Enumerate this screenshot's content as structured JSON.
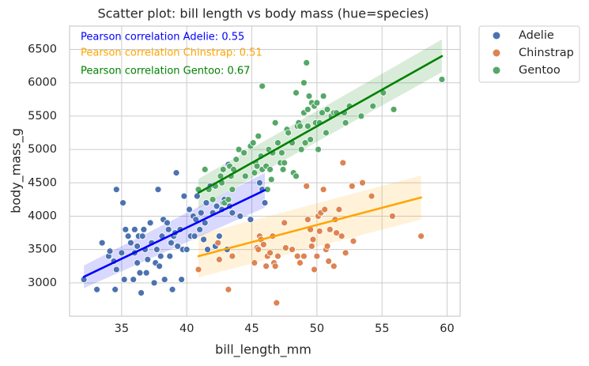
{
  "chart_data": {
    "type": "scatter",
    "title": "Scatter plot: bill length vs body mass (hue=species)",
    "xlabel": "bill_length_mm",
    "ylabel": "body_mass_g",
    "xlim": [
      31,
      61
    ],
    "ylim": [
      2500,
      6850
    ],
    "x_ticks": [
      35,
      40,
      45,
      50,
      55,
      60
    ],
    "y_ticks": [
      3000,
      3500,
      4000,
      4500,
      5000,
      5500,
      6000,
      6500
    ],
    "grid": true,
    "legend_position": "outside-top-right",
    "annotations": [
      {
        "text": "Pearson correlation Adelie: 0.55",
        "color": "#0000ff"
      },
      {
        "text": "Pearson correlation Chinstrap: 0.51",
        "color": "#ffa500"
      },
      {
        "text": "Pearson correlation Gentoo: 0.67",
        "color": "#008000"
      }
    ],
    "series": [
      {
        "name": "Adelie",
        "point_color": "#4c72b0",
        "line_color": "#0000ff",
        "band_color": "#0000ff",
        "band_opacity": 0.15,
        "fit": {
          "x": [
            32.1,
            46.0
          ],
          "y": [
            3090,
            4390
          ]
        },
        "band": {
          "lower": [
            2920,
            4130
          ],
          "upper": [
            3260,
            4650
          ]
        },
        "points": [
          [
            32.1,
            3050
          ],
          [
            33.1,
            2900
          ],
          [
            33.5,
            3600
          ],
          [
            34.0,
            3400
          ],
          [
            34.1,
            3475
          ],
          [
            34.4,
            3325
          ],
          [
            34.5,
            2900
          ],
          [
            34.6,
            4400
          ],
          [
            34.6,
            3200
          ],
          [
            35.0,
            3450
          ],
          [
            35.1,
            4200
          ],
          [
            35.2,
            3050
          ],
          [
            35.3,
            3800
          ],
          [
            35.5,
            3700
          ],
          [
            35.7,
            3600
          ],
          [
            35.9,
            3050
          ],
          [
            36.0,
            3800
          ],
          [
            36.0,
            3450
          ],
          [
            36.2,
            3550
          ],
          [
            36.2,
            3300
          ],
          [
            36.3,
            3700
          ],
          [
            36.4,
            3150
          ],
          [
            36.5,
            2850
          ],
          [
            36.6,
            3700
          ],
          [
            36.7,
            3800
          ],
          [
            36.8,
            3500
          ],
          [
            36.9,
            3150
          ],
          [
            37.0,
            3350
          ],
          [
            37.2,
            3900
          ],
          [
            37.3,
            3600
          ],
          [
            37.5,
            3000
          ],
          [
            37.6,
            3300
          ],
          [
            37.7,
            3500
          ],
          [
            37.8,
            4400
          ],
          [
            37.9,
            3250
          ],
          [
            38.0,
            3400
          ],
          [
            38.1,
            3700
          ],
          [
            38.2,
            3950
          ],
          [
            38.3,
            3050
          ],
          [
            38.5,
            3900
          ],
          [
            38.6,
            3800
          ],
          [
            38.7,
            3400
          ],
          [
            38.8,
            3600
          ],
          [
            38.9,
            2900
          ],
          [
            39.0,
            3700
          ],
          [
            39.1,
            3750
          ],
          [
            39.2,
            4650
          ],
          [
            39.3,
            3550
          ],
          [
            39.5,
            3800
          ],
          [
            39.6,
            3050
          ],
          [
            39.7,
            3500
          ],
          [
            39.8,
            4300
          ],
          [
            40.0,
            3500
          ],
          [
            40.2,
            4100
          ],
          [
            40.3,
            3700
          ],
          [
            40.5,
            4000
          ],
          [
            40.6,
            3700
          ],
          [
            40.7,
            3950
          ],
          [
            40.8,
            4300
          ],
          [
            40.9,
            3200
          ],
          [
            41.0,
            3800
          ],
          [
            41.1,
            4050
          ],
          [
            41.3,
            3650
          ],
          [
            41.4,
            3900
          ],
          [
            41.5,
            4200
          ],
          [
            41.6,
            3500
          ],
          [
            41.8,
            4450
          ],
          [
            42.0,
            4050
          ],
          [
            42.2,
            3550
          ],
          [
            42.3,
            4150
          ],
          [
            42.5,
            3700
          ],
          [
            42.7,
            4100
          ],
          [
            42.8,
            4200
          ],
          [
            42.9,
            4250
          ],
          [
            43.1,
            3500
          ],
          [
            43.2,
            4775
          ],
          [
            43.3,
            4150
          ],
          [
            43.5,
            4050
          ],
          [
            44.1,
            4000
          ],
          [
            44.9,
            3950
          ],
          [
            45.6,
            4500
          ],
          [
            45.8,
            4400
          ],
          [
            46.0,
            4200
          ]
        ]
      },
      {
        "name": "Chinstrap",
        "point_color": "#dd8452",
        "line_color": "#ffa500",
        "band_color": "#ffa500",
        "band_opacity": 0.15,
        "fit": {
          "x": [
            40.9,
            58.0
          ],
          "y": [
            3400,
            4280
          ]
        },
        "band": {
          "lower": [
            3080,
            3950
          ],
          "upper": [
            3720,
            4610
          ]
        },
        "points": [
          [
            40.9,
            3200
          ],
          [
            42.4,
            3600
          ],
          [
            42.5,
            3350
          ],
          [
            43.2,
            2900
          ],
          [
            43.5,
            3400
          ],
          [
            45.2,
            3300
          ],
          [
            45.4,
            3525
          ],
          [
            45.5,
            3500
          ],
          [
            45.6,
            3700
          ],
          [
            45.7,
            3650
          ],
          [
            45.9,
            3575
          ],
          [
            46.1,
            3250
          ],
          [
            46.2,
            3400
          ],
          [
            46.4,
            3450
          ],
          [
            46.6,
            3700
          ],
          [
            46.7,
            3300
          ],
          [
            46.8,
            3250
          ],
          [
            46.9,
            2700
          ],
          [
            47.0,
            3400
          ],
          [
            47.5,
            3900
          ],
          [
            47.6,
            3525
          ],
          [
            48.1,
            3500
          ],
          [
            48.5,
            3400
          ],
          [
            48.7,
            3300
          ],
          [
            49.0,
            3400
          ],
          [
            49.2,
            4450
          ],
          [
            49.3,
            3950
          ],
          [
            49.5,
            3800
          ],
          [
            49.6,
            3550
          ],
          [
            49.7,
            3650
          ],
          [
            49.8,
            3200
          ],
          [
            50.0,
            3400
          ],
          [
            50.1,
            4000
          ],
          [
            50.2,
            3775
          ],
          [
            50.3,
            4050
          ],
          [
            50.5,
            4400
          ],
          [
            50.6,
            4100
          ],
          [
            50.7,
            3500
          ],
          [
            50.8,
            3550
          ],
          [
            50.9,
            3325
          ],
          [
            51.0,
            3800
          ],
          [
            51.3,
            3250
          ],
          [
            51.4,
            3950
          ],
          [
            51.5,
            3750
          ],
          [
            51.7,
            4100
          ],
          [
            51.9,
            3700
          ],
          [
            52.0,
            4800
          ],
          [
            52.2,
            3450
          ],
          [
            52.7,
            4450
          ],
          [
            52.8,
            3625
          ],
          [
            53.5,
            4500
          ],
          [
            54.2,
            4300
          ],
          [
            55.8,
            4000
          ],
          [
            58.0,
            3700
          ]
        ]
      },
      {
        "name": "Gentoo",
        "point_color": "#55a868",
        "line_color": "#008000",
        "band_color": "#008000",
        "band_opacity": 0.15,
        "fit": {
          "x": [
            40.9,
            59.6
          ],
          "y": [
            4350,
            6400
          ]
        },
        "band": {
          "lower": [
            4120,
            6160
          ],
          "upper": [
            4560,
            6650
          ]
        },
        "points": [
          [
            40.9,
            4400
          ],
          [
            41.4,
            4700
          ],
          [
            41.7,
            4400
          ],
          [
            42.0,
            4250
          ],
          [
            42.2,
            4450
          ],
          [
            42.6,
            4600
          ],
          [
            42.7,
            4500
          ],
          [
            42.8,
            4700
          ],
          [
            42.9,
            4200
          ],
          [
            43.2,
            4250
          ],
          [
            43.3,
            4750
          ],
          [
            43.4,
            4600
          ],
          [
            43.5,
            4400
          ],
          [
            43.6,
            4700
          ],
          [
            43.8,
            4850
          ],
          [
            44.0,
            5000
          ],
          [
            44.4,
            4950
          ],
          [
            44.5,
            4600
          ],
          [
            44.9,
            5050
          ],
          [
            45.1,
            5100
          ],
          [
            45.2,
            4650
          ],
          [
            45.3,
            4800
          ],
          [
            45.4,
            4750
          ],
          [
            45.5,
            5200
          ],
          [
            45.7,
            4900
          ],
          [
            45.8,
            4700
          ],
          [
            46.1,
            4750
          ],
          [
            46.2,
            4400
          ],
          [
            46.3,
            5000
          ],
          [
            46.4,
            4700
          ],
          [
            46.5,
            4550
          ],
          [
            46.6,
            4950
          ],
          [
            46.8,
            5400
          ],
          [
            47.0,
            5100
          ],
          [
            47.2,
            4800
          ],
          [
            47.3,
            4950
          ],
          [
            47.4,
            4700
          ],
          [
            47.5,
            4800
          ],
          [
            47.7,
            5300
          ],
          [
            47.8,
            5250
          ],
          [
            48.1,
            5100
          ],
          [
            48.2,
            4650
          ],
          [
            48.4,
            4600
          ],
          [
            48.5,
            5350
          ],
          [
            48.6,
            5400
          ],
          [
            48.7,
            5350
          ],
          [
            48.8,
            5000
          ],
          [
            49.0,
            5550
          ],
          [
            49.1,
            5100
          ],
          [
            49.2,
            6300
          ],
          [
            49.3,
            5600
          ],
          [
            49.4,
            5800
          ],
          [
            49.5,
            5150
          ],
          [
            49.6,
            5700
          ],
          [
            49.8,
            5650
          ],
          [
            49.9,
            5400
          ],
          [
            50.0,
            5700
          ],
          [
            50.1,
            5000
          ],
          [
            50.2,
            5400
          ],
          [
            50.4,
            5550
          ],
          [
            50.5,
            5800
          ],
          [
            50.7,
            5250
          ],
          [
            50.8,
            5600
          ],
          [
            51.1,
            5500
          ],
          [
            51.3,
            5550
          ],
          [
            51.5,
            5550
          ],
          [
            52.1,
            5550
          ],
          [
            52.2,
            5400
          ],
          [
            52.5,
            5650
          ],
          [
            53.4,
            5500
          ],
          [
            54.3,
            5650
          ],
          [
            55.1,
            5850
          ],
          [
            55.9,
            5600
          ],
          [
            59.6,
            6050
          ],
          [
            45.8,
            5950
          ],
          [
            48.4,
            5850
          ],
          [
            49.0,
            6000
          ],
          [
            49.3,
            5350
          ]
        ]
      }
    ]
  }
}
